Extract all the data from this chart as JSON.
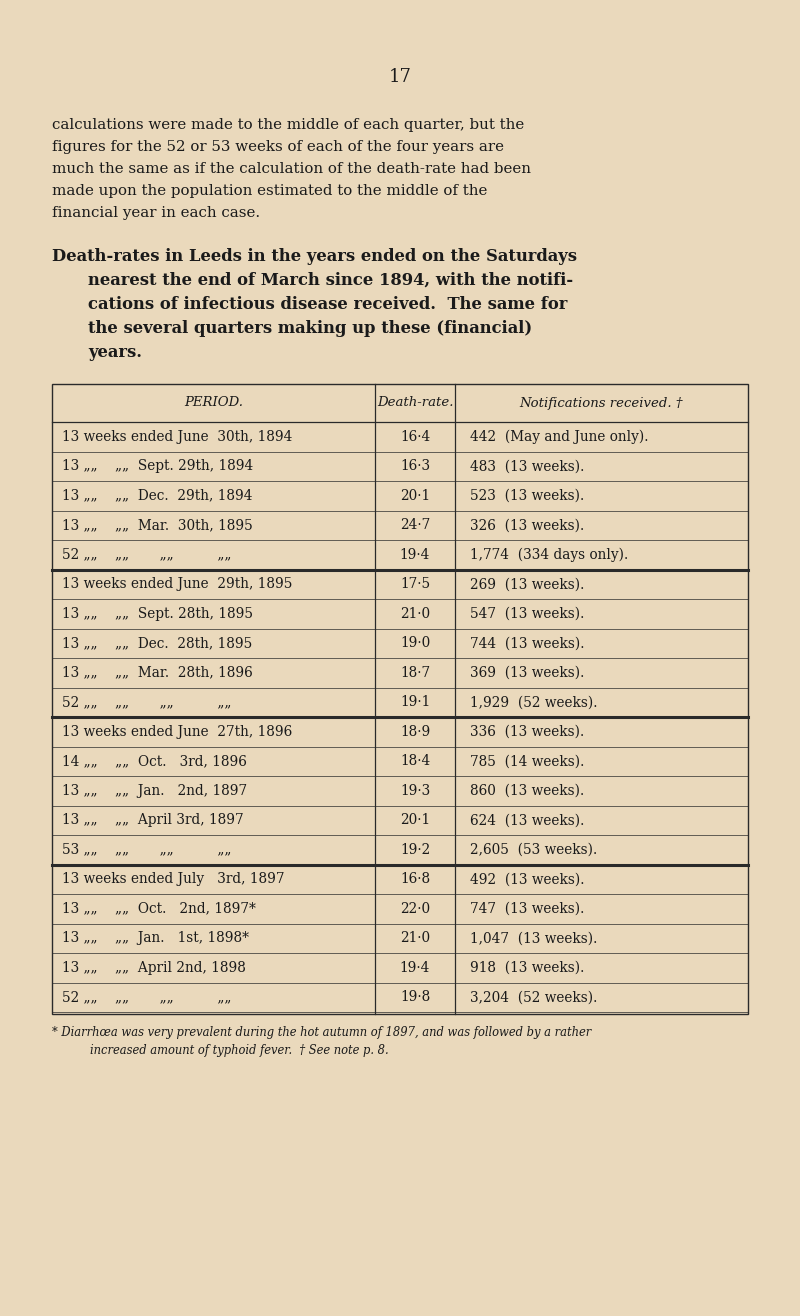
{
  "bg_color": "#EAD9BC",
  "page_number": "17",
  "intro_text": [
    "calculations were made to the middle of each quarter, but the",
    "figures for the 52 or 53 weeks of each of the four years are",
    "much the same as if the calculation of the death-rate had been",
    "made upon the population estimated to the middle of the",
    "financial year in each case."
  ],
  "heading_lines": [
    "Death-rates in Leeds in the years ended on the Saturdays",
    "nearest the end of March since 1894, with the notifi-",
    "cations of infectious disease received.  The same for",
    "the several quarters making up these (financial)",
    "years."
  ],
  "col_headers": [
    "PERIOD.",
    "Death-rate.",
    "Notifications received. †"
  ],
  "rows": [
    {
      "period": "13 weeks ended June  30th, 1894",
      "rate": "16·4",
      "notif": "442  (May and June only).",
      "thick_below": false
    },
    {
      "period": "13 „„    „„  Sept. 29th, 1894",
      "rate": "16·3",
      "notif": "483  (13 weeks).",
      "thick_below": false
    },
    {
      "period": "13 „„    „„  Dec.  29th, 1894",
      "rate": "20·1",
      "notif": "523  (13 weeks).",
      "thick_below": false
    },
    {
      "period": "13 „„    „„  Mar.  30th, 1895",
      "rate": "24·7",
      "notif": "326  (13 weeks).",
      "thick_below": false
    },
    {
      "period": "52 „„    „„       „„          „„",
      "rate": "19·4",
      "notif": "1,774  (334 days only).",
      "thick_below": true
    },
    {
      "period": "13 weeks ended June  29th, 1895",
      "rate": "17·5",
      "notif": "269  (13 weeks).",
      "thick_below": false
    },
    {
      "period": "13 „„    „„  Sept. 28th, 1895",
      "rate": "21·0",
      "notif": "547  (13 weeks).",
      "thick_below": false
    },
    {
      "period": "13 „„    „„  Dec.  28th, 1895",
      "rate": "19·0",
      "notif": "744  (13 weeks).",
      "thick_below": false
    },
    {
      "period": "13 „„    „„  Mar.  28th, 1896",
      "rate": "18·7",
      "notif": "369  (13 weeks).",
      "thick_below": false
    },
    {
      "period": "52 „„    „„       „„          „„",
      "rate": "19·1",
      "notif": "1,929  (52 weeks).",
      "thick_below": true
    },
    {
      "period": "13 weeks ended June  27th, 1896",
      "rate": "18·9",
      "notif": "336  (13 weeks).",
      "thick_below": false
    },
    {
      "period": "14 „„    „„  Oct.   3rd, 1896",
      "rate": "18·4",
      "notif": "785  (14 weeks).",
      "thick_below": false
    },
    {
      "period": "13 „„    „„  Jan.   2nd, 1897",
      "rate": "19·3",
      "notif": "860  (13 weeks).",
      "thick_below": false
    },
    {
      "period": "13 „„    „„  April 3rd, 1897",
      "rate": "20·1",
      "notif": "624  (13 weeks).",
      "thick_below": false
    },
    {
      "period": "53 „„    „„       „„          „„",
      "rate": "19·2",
      "notif": "2,605  (53 weeks).",
      "thick_below": true
    },
    {
      "period": "13 weeks ended July   3rd, 1897",
      "rate": "16·8",
      "notif": "492  (13 weeks).",
      "thick_below": false
    },
    {
      "period": "13 „„    „„  Oct.   2nd, 1897*",
      "rate": "22·0",
      "notif": "747  (13 weeks).",
      "thick_below": false
    },
    {
      "period": "13 „„    „„  Jan.   1st, 1898*",
      "rate": "21·0",
      "notif": "1,047  (13 weeks).",
      "thick_below": false
    },
    {
      "period": "13 „„    „„  April 2nd, 1898",
      "rate": "19·4",
      "notif": "918  (13 weeks).",
      "thick_below": false
    },
    {
      "period": "52 „„    „„       „„          „„",
      "rate": "19·8",
      "notif": "3,204  (52 weeks).",
      "thick_below": false
    }
  ],
  "footnote1": "* Diarrhœa was very prevalent during the hot autumn of 1897, and was followed by a rather",
  "footnote2": "increased amount of typhoid fever.  † See note p. 8."
}
